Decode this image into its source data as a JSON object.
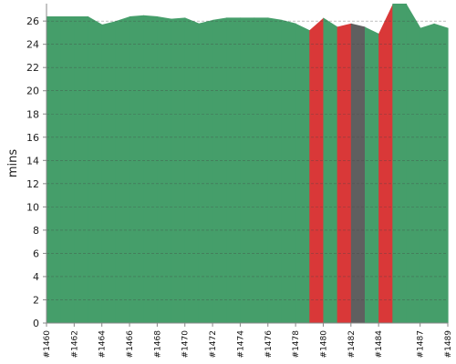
{
  "chart_data": {
    "type": "area",
    "ylabel": "mins",
    "xlabel": "",
    "ylim": [
      0,
      27.5
    ],
    "y_ticks": [
      0,
      2,
      4,
      6,
      8,
      10,
      12,
      14,
      16,
      18,
      20,
      22,
      24,
      26
    ],
    "x_tick_labels": [
      "#1460",
      "#1462",
      "#1464",
      "#1466",
      "#1468",
      "#1470",
      "#1472",
      "#1474",
      "#1476",
      "#1478",
      "#1480",
      "#1482",
      "#1484",
      "#1487",
      "#1489"
    ],
    "grid": true,
    "reference_line": 26,
    "builds": [
      "#1460",
      "#1461",
      "#1462",
      "#1463",
      "#1464",
      "#1465",
      "#1466",
      "#1467",
      "#1468",
      "#1469",
      "#1470",
      "#1471",
      "#1472",
      "#1473",
      "#1474",
      "#1475",
      "#1476",
      "#1477",
      "#1478",
      "#1479",
      "#1480",
      "#1481",
      "#1482",
      "#1483",
      "#1484",
      "#1485",
      "#1486",
      "#1487",
      "#1488",
      "#1489"
    ],
    "values": [
      26.4,
      26.4,
      26.4,
      26.4,
      25.7,
      26.0,
      26.4,
      26.5,
      26.4,
      26.2,
      26.3,
      25.8,
      26.1,
      26.3,
      26.3,
      26.3,
      26.3,
      26.1,
      25.8,
      25.2,
      26.3,
      25.5,
      25.8,
      25.5,
      24.9,
      27.5,
      27.5,
      25.4,
      25.8,
      25.4
    ],
    "statuses": [
      "success",
      "success",
      "success",
      "success",
      "success",
      "success",
      "success",
      "success",
      "success",
      "success",
      "success",
      "success",
      "success",
      "success",
      "success",
      "success",
      "success",
      "success",
      "success",
      "failure",
      "success",
      "failure",
      "aborted",
      "success",
      "failure",
      "success",
      "success",
      "success",
      "success",
      "success"
    ],
    "colors": {
      "success": "#459e6a",
      "failure": "#d93838",
      "aborted": "#5f5f5f"
    }
  }
}
